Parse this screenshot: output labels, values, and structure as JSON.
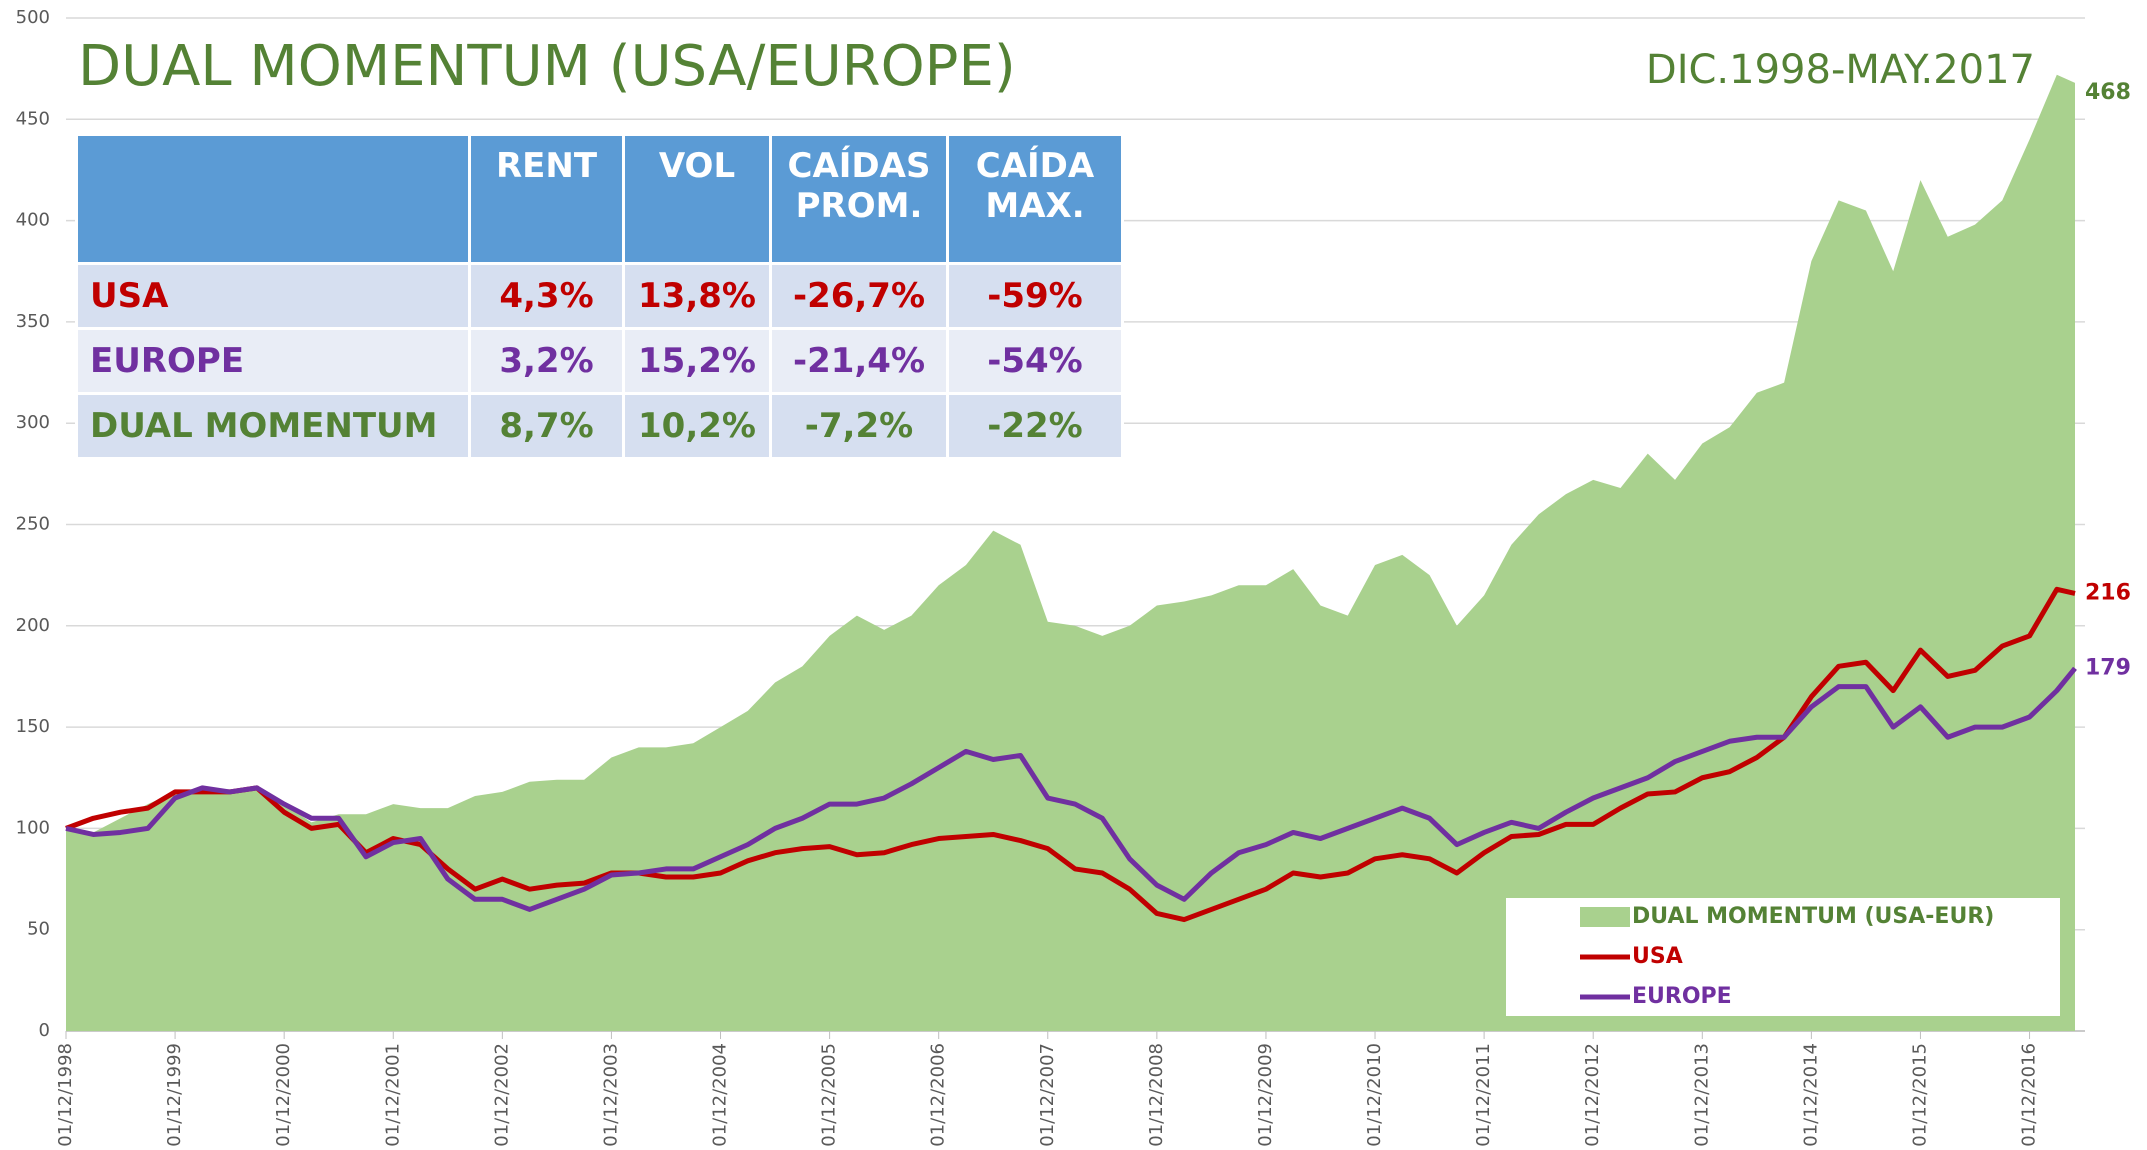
{
  "chart_data": {
    "type": "area-line",
    "title": "DUAL MOMENTUM (USA/EUROPE)",
    "subtitle": "DIC.1998-MAY.2017",
    "x": [
      "1998-12-01",
      "1999-03-01",
      "1999-06-01",
      "1999-09-01",
      "1999-12-01",
      "2000-03-01",
      "2000-06-01",
      "2000-09-01",
      "2000-12-01",
      "2001-03-01",
      "2001-06-01",
      "2001-09-01",
      "2001-12-01",
      "2002-03-01",
      "2002-06-01",
      "2002-09-01",
      "2002-12-01",
      "2003-03-01",
      "2003-06-01",
      "2003-09-01",
      "2003-12-01",
      "2004-03-01",
      "2004-06-01",
      "2004-09-01",
      "2004-12-01",
      "2005-03-01",
      "2005-06-01",
      "2005-09-01",
      "2005-12-01",
      "2006-03-01",
      "2006-06-01",
      "2006-09-01",
      "2006-12-01",
      "2007-03-01",
      "2007-06-01",
      "2007-09-01",
      "2007-12-01",
      "2008-03-01",
      "2008-06-01",
      "2008-09-01",
      "2008-12-01",
      "2009-03-01",
      "2009-06-01",
      "2009-09-01",
      "2009-12-01",
      "2010-03-01",
      "2010-06-01",
      "2010-09-01",
      "2010-12-01",
      "2011-03-01",
      "2011-06-01",
      "2011-09-01",
      "2011-12-01",
      "2012-03-01",
      "2012-06-01",
      "2012-09-01",
      "2012-12-01",
      "2013-03-01",
      "2013-06-01",
      "2013-09-01",
      "2013-12-01",
      "2014-03-01",
      "2014-06-01",
      "2014-09-01",
      "2014-12-01",
      "2015-03-01",
      "2015-06-01",
      "2015-09-01",
      "2015-12-01",
      "2016-03-01",
      "2016-06-01",
      "2016-09-01",
      "2016-12-01",
      "2017-03-01",
      "2017-05-01"
    ],
    "series": [
      {
        "name": "DUAL MOMENTUM (USA-EUR)",
        "kind": "area",
        "color": "#a9d18e",
        "label_color": "#548235",
        "values": [
          100,
          98,
          105,
          112,
          118,
          120,
          118,
          120,
          112,
          103,
          107,
          107,
          112,
          110,
          110,
          116,
          118,
          123,
          124,
          124,
          135,
          140,
          140,
          142,
          150,
          158,
          172,
          180,
          195,
          205,
          198,
          205,
          220,
          230,
          247,
          240,
          202,
          200,
          195,
          200,
          210,
          212,
          215,
          220,
          220,
          228,
          210,
          205,
          230,
          235,
          225,
          200,
          215,
          240,
          255,
          265,
          272,
          268,
          285,
          272,
          290,
          298,
          315,
          320,
          380,
          410,
          405,
          375,
          420,
          392,
          398,
          410,
          440,
          472,
          468
        ]
      },
      {
        "name": "USA",
        "kind": "line",
        "color": "#c00000",
        "label_color": "#c00000",
        "values": [
          100,
          105,
          108,
          110,
          118,
          118,
          118,
          120,
          108,
          100,
          102,
          88,
          95,
          92,
          80,
          70,
          75,
          70,
          72,
          73,
          78,
          78,
          76,
          76,
          78,
          84,
          88,
          90,
          91,
          87,
          88,
          92,
          95,
          96,
          97,
          94,
          90,
          80,
          78,
          70,
          58,
          55,
          60,
          65,
          70,
          78,
          76,
          78,
          85,
          87,
          85,
          78,
          88,
          96,
          97,
          102,
          102,
          110,
          117,
          118,
          125,
          128,
          135,
          145,
          165,
          180,
          182,
          168,
          188,
          175,
          178,
          190,
          195,
          218,
          216
        ]
      },
      {
        "name": "EUROPE",
        "kind": "line",
        "color": "#7030a0",
        "label_color": "#7030a0",
        "values": [
          100,
          97,
          98,
          100,
          115,
          120,
          118,
          120,
          112,
          105,
          105,
          86,
          93,
          95,
          75,
          65,
          65,
          60,
          65,
          70,
          77,
          78,
          80,
          80,
          86,
          92,
          100,
          105,
          112,
          112,
          115,
          122,
          130,
          138,
          134,
          136,
          115,
          112,
          105,
          85,
          72,
          65,
          78,
          88,
          92,
          98,
          95,
          100,
          105,
          110,
          105,
          92,
          98,
          103,
          100,
          108,
          115,
          120,
          125,
          133,
          138,
          143,
          145,
          145,
          160,
          170,
          170,
          150,
          160,
          145,
          150,
          150,
          155,
          168,
          179
        ]
      }
    ],
    "xlim": [
      "1998-12-01",
      "2017-05-01"
    ],
    "xticks": [
      {
        "value": "1998-12-01",
        "label": "01/12/1998"
      },
      {
        "value": "1999-12-01",
        "label": "01/12/1999"
      },
      {
        "value": "2000-12-01",
        "label": "01/12/2000"
      },
      {
        "value": "2001-12-01",
        "label": "01/12/2001"
      },
      {
        "value": "2002-12-01",
        "label": "01/12/2002"
      },
      {
        "value": "2003-12-01",
        "label": "01/12/2003"
      },
      {
        "value": "2004-12-01",
        "label": "01/12/2004"
      },
      {
        "value": "2005-12-01",
        "label": "01/12/2005"
      },
      {
        "value": "2006-12-01",
        "label": "01/12/2006"
      },
      {
        "value": "2007-12-01",
        "label": "01/12/2007"
      },
      {
        "value": "2008-12-01",
        "label": "01/12/2008"
      },
      {
        "value": "2009-12-01",
        "label": "01/12/2009"
      },
      {
        "value": "2010-12-01",
        "label": "01/12/2010"
      },
      {
        "value": "2011-12-01",
        "label": "01/12/2011"
      },
      {
        "value": "2012-12-01",
        "label": "01/12/2012"
      },
      {
        "value": "2013-12-01",
        "label": "01/12/2013"
      },
      {
        "value": "2014-12-01",
        "label": "01/12/2014"
      },
      {
        "value": "2015-12-01",
        "label": "01/12/2015"
      },
      {
        "value": "2016-12-01",
        "label": "01/12/2016"
      }
    ],
    "ylim": [
      0,
      500
    ],
    "yticks": [
      0,
      50,
      100,
      150,
      200,
      250,
      300,
      350,
      400,
      450,
      500
    ],
    "grid": true,
    "legend": "bottom-right"
  },
  "table": {
    "header": [
      "RENT",
      "VOL",
      "CAÍDAS PROM.",
      "CAÍDA MAX."
    ],
    "rows": [
      {
        "name": "USA",
        "color": "#c00000",
        "cells": [
          "4,3%",
          "13,8%",
          "-26,7%",
          "-59%"
        ]
      },
      {
        "name": "EUROPE",
        "color": "#7030a0",
        "cells": [
          "3,2%",
          "15,2%",
          "-21,4%",
          "-54%"
        ]
      },
      {
        "name": "DUAL MOMENTUM",
        "color": "#548235",
        "cells": [
          "8,7%",
          "10,2%",
          "-7,2%",
          "-22%"
        ]
      }
    ]
  }
}
